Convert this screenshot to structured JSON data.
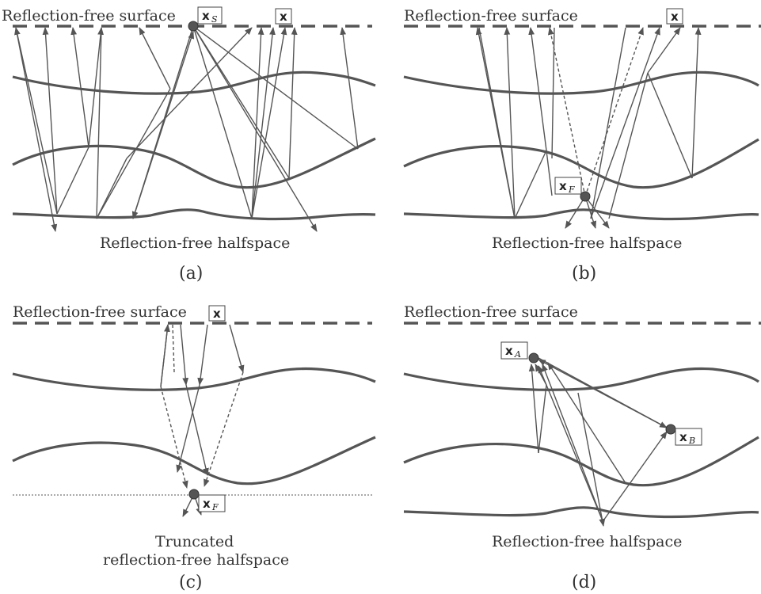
{
  "panels": [
    {
      "id": "a",
      "caption": "(a)",
      "top_label": "Reflection-free surface",
      "bottom_label": "Reflection-free halfspace",
      "points": [
        {
          "symbol": "x",
          "sub": "S"
        },
        {
          "symbol": "x",
          "sub": ""
        }
      ]
    },
    {
      "id": "b",
      "caption": "(b)",
      "top_label": "Reflection-free surface",
      "bottom_label": "Reflection-free halfspace",
      "points": [
        {
          "symbol": "x",
          "sub": ""
        },
        {
          "symbol": "x",
          "sub": "F"
        }
      ]
    },
    {
      "id": "c",
      "caption": "(c)",
      "top_label": "Reflection-free surface",
      "bottom_label_line1": "Truncated",
      "bottom_label_line2": "reflection-free halfspace",
      "points": [
        {
          "symbol": "x",
          "sub": ""
        },
        {
          "symbol": "x",
          "sub": "F"
        }
      ]
    },
    {
      "id": "d",
      "caption": "(d)",
      "top_label": "Reflection-free surface",
      "bottom_label": "Reflection-free halfspace",
      "points": [
        {
          "symbol": "x",
          "sub": "A"
        },
        {
          "symbol": "x",
          "sub": "B"
        }
      ]
    }
  ],
  "colors": {
    "line": "#555555",
    "text": "#333333",
    "background": "#ffffff"
  }
}
